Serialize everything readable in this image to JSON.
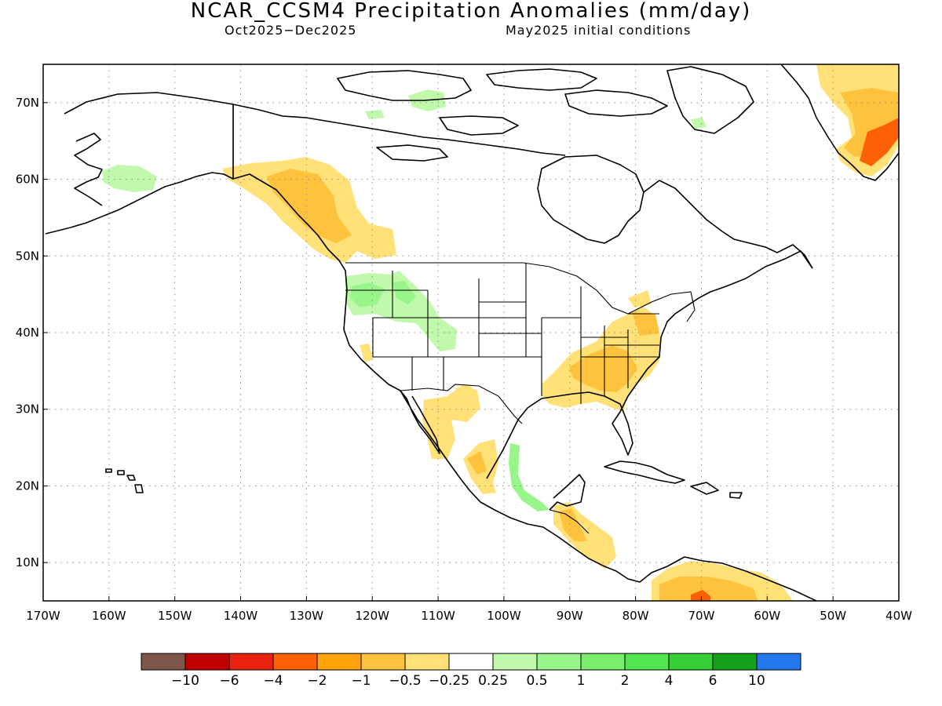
{
  "title": "NCAR_CCSM4 Precipitation Anomalies (mm/day)",
  "subtitle_left": "Oct2025−Dec2025",
  "subtitle_right": "May2025 initial conditions",
  "map": {
    "lon_range": [
      -170,
      -40
    ],
    "lat_range": [
      5,
      75
    ],
    "lat_ticks": [
      "70N",
      "60N",
      "50N",
      "40N",
      "30N",
      "20N",
      "10N"
    ],
    "lon_ticks": [
      "170W",
      "160W",
      "150W",
      "140W",
      "130W",
      "120W",
      "110W",
      "100W",
      "90W",
      "80W",
      "70W",
      "60W",
      "50W",
      "40W"
    ],
    "gridlines": "dotted",
    "anomaly_regions": [
      {
        "region": "Southern Alaska / British Columbia coast",
        "category": "dry"
      },
      {
        "region": "Pacific Northwest and northern Rockies",
        "category": "wet"
      },
      {
        "region": "Southeastern United States",
        "category": "dry"
      },
      {
        "region": "Northwestern Mexico",
        "category": "dry"
      },
      {
        "region": "Eastern Mexico coast",
        "category": "wet"
      },
      {
        "region": "Central America",
        "category": "dry"
      },
      {
        "region": "Northern South America",
        "category": "dry"
      },
      {
        "region": "Southern Greenland",
        "category": "dry"
      },
      {
        "region": "Western Alaska",
        "category": "wet"
      }
    ]
  },
  "legend": {
    "colors": [
      "#7d5649",
      "#c10000",
      "#e8220e",
      "#fe6005",
      "#fea40a",
      "#ffc23d",
      "#ffe178",
      "#ffffff",
      "#c0f8ac",
      "#97f58a",
      "#7aee6a",
      "#52e451",
      "#36cf38",
      "#13a01a",
      "#2478ee"
    ],
    "labels": [
      "−10",
      "−6",
      "−4",
      "−2",
      "−1",
      "−0.5",
      "−0.25",
      "0.25",
      "0.5",
      "1",
      "2",
      "4",
      "6",
      "10"
    ]
  }
}
